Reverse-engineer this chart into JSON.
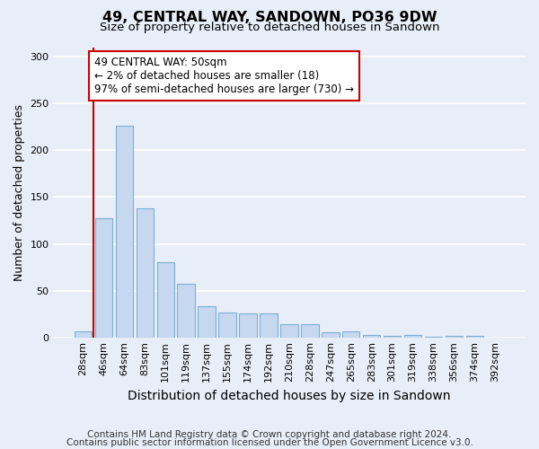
{
  "title": "49, CENTRAL WAY, SANDOWN, PO36 9DW",
  "subtitle": "Size of property relative to detached houses in Sandown",
  "xlabel": "Distribution of detached houses by size in Sandown",
  "ylabel": "Number of detached properties",
  "categories": [
    "28sqm",
    "46sqm",
    "64sqm",
    "83sqm",
    "101sqm",
    "119sqm",
    "137sqm",
    "155sqm",
    "174sqm",
    "192sqm",
    "210sqm",
    "228sqm",
    "247sqm",
    "265sqm",
    "283sqm",
    "301sqm",
    "319sqm",
    "338sqm",
    "356sqm",
    "374sqm",
    "392sqm"
  ],
  "values": [
    7,
    127,
    226,
    138,
    80,
    57,
    33,
    27,
    26,
    26,
    14,
    14,
    6,
    7,
    3,
    2,
    3,
    1,
    2,
    2,
    0
  ],
  "bar_color": "#c5d8f0",
  "bar_edge_color": "#7bafd4",
  "red_line_x": 0.5,
  "highlight_line_color": "#cc0000",
  "annotation_text": "49 CENTRAL WAY: 50sqm\n← 2% of detached houses are smaller (18)\n97% of semi-detached houses are larger (730) →",
  "annotation_box_facecolor": "#ffffff",
  "annotation_box_edgecolor": "#cc0000",
  "footnote_line1": "Contains HM Land Registry data © Crown copyright and database right 2024.",
  "footnote_line2": "Contains public sector information licensed under the Open Government Licence v3.0.",
  "ylim": [
    0,
    310
  ],
  "yticks": [
    0,
    50,
    100,
    150,
    200,
    250,
    300
  ],
  "background_color": "#e8eef8",
  "grid_color": "#ffffff",
  "title_fontsize": 11.5,
  "subtitle_fontsize": 9.5,
  "ylabel_fontsize": 9,
  "xlabel_fontsize": 10,
  "tick_fontsize": 8,
  "annot_fontsize": 8.5,
  "footnote_fontsize": 7.5
}
